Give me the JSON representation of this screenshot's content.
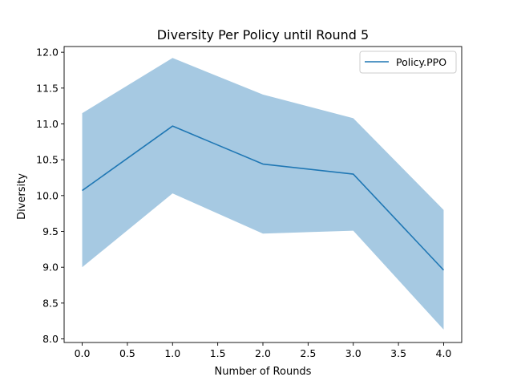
{
  "chart_data": {
    "type": "line",
    "title": "Diversity Per Policy until Round 5",
    "xlabel": "Number of Rounds",
    "ylabel": "Diversity",
    "xlim": [
      -0.2,
      4.2
    ],
    "ylim": [
      7.95,
      12.08
    ],
    "xticks": [
      0.0,
      0.5,
      1.0,
      1.5,
      2.0,
      2.5,
      3.0,
      3.5,
      4.0
    ],
    "xtick_labels": [
      "0.0",
      "0.5",
      "1.0",
      "1.5",
      "2.0",
      "2.5",
      "3.0",
      "3.5",
      "4.0"
    ],
    "yticks": [
      8.0,
      8.5,
      9.0,
      9.5,
      10.0,
      10.5,
      11.0,
      11.5,
      12.0
    ],
    "ytick_labels": [
      "8.0",
      "8.5",
      "9.0",
      "9.5",
      "10.0",
      "10.5",
      "11.0",
      "11.5",
      "12.0"
    ],
    "grid": false,
    "legend_position": "top-right",
    "series": [
      {
        "name": "Policy.PPO",
        "color": "#1f77b4",
        "band_color": "#a6c9e2",
        "x": [
          0,
          1,
          2,
          3,
          4
        ],
        "y": [
          10.07,
          10.97,
          10.44,
          10.3,
          8.96
        ],
        "upper": [
          11.15,
          11.92,
          11.41,
          11.08,
          9.8
        ],
        "lower": [
          9.0,
          10.03,
          9.47,
          9.51,
          8.13
        ]
      }
    ]
  }
}
